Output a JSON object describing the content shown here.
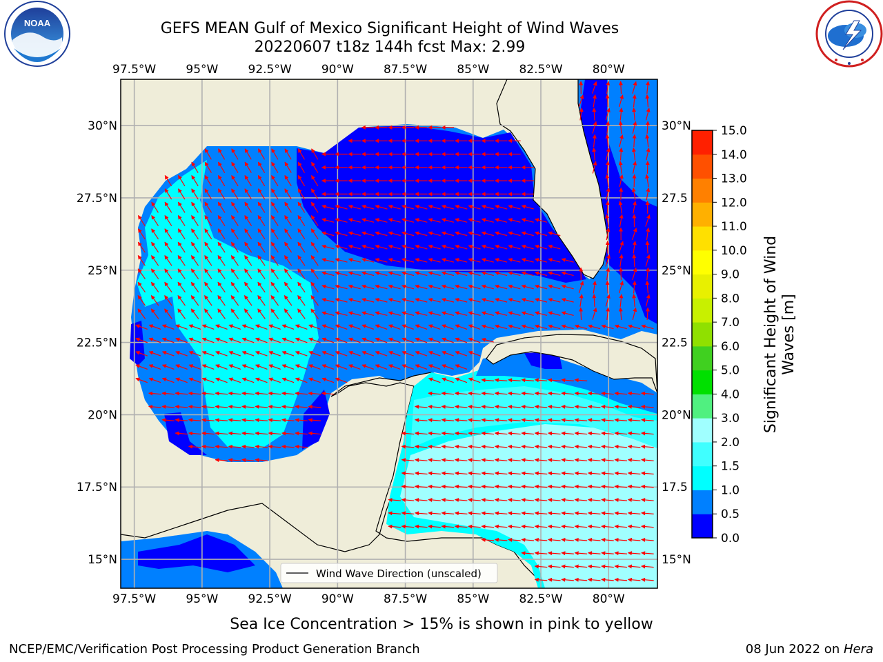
{
  "title": "GEFS MEAN Gulf of Mexico Significant Height of Wind Waves",
  "subtitle": "20220607 t18z 144h fcst   Max: 2.99",
  "caption": "Sea Ice Concentration > 15% is shown in pink to yellow",
  "footer_left": "NCEP/EMC/Verification Post Processing Product Generation Branch",
  "footer_right_date": "08 Jun 2022 on ",
  "footer_right_host": "Hera",
  "logos": {
    "left": {
      "icon": "noaa-logo-icon",
      "text": "NOAA"
    },
    "right": {
      "icon": "nws-logo-icon"
    }
  },
  "map": {
    "lon_range": [
      -98,
      -78.2
    ],
    "lat_range": [
      14.0,
      31.6
    ],
    "lon_ticks": [
      -97.5,
      -95,
      -92.5,
      -90,
      -87.5,
      -85,
      -82.5,
      -80
    ],
    "lon_labels": [
      "97.5°W",
      "95°W",
      "92.5°W",
      "90°W",
      "87.5°W",
      "85°W",
      "82.5°W",
      "80°W"
    ],
    "lat_ticks": [
      15,
      17.5,
      20,
      22.5,
      25,
      27.5,
      30
    ],
    "lat_labels": [
      "15°N",
      "17.5°N",
      "20°N",
      "22.5°N",
      "25°N",
      "27.5°N",
      "30°N"
    ],
    "right_lat_labels": [
      "15°N",
      "17.5",
      "20°N",
      "22.5",
      "25°N",
      "27.5",
      "30°N"
    ],
    "gridlines": true,
    "land_color": "#efedd9",
    "legend_label": "Wind Wave Direction (unscaled)",
    "legend_position": "bottom-center"
  },
  "colorbar": {
    "label": "Significant Height of Wind Waves [m]",
    "label_lines": [
      "Significant Height of Wind",
      "Waves [m]"
    ],
    "ticks": [
      "0.0",
      "0.5",
      "1.0",
      "1.5",
      "2.0",
      "3.0",
      "4.0",
      "5.0",
      "6.0",
      "7.0",
      "8.0",
      "9.0",
      "10.0",
      "11.0",
      "12.0",
      "13.0",
      "14.0",
      "15.0"
    ],
    "colors": [
      "#0000ff",
      "#0080ff",
      "#00ffff",
      "#40ffff",
      "#a0ffff",
      "#50f080",
      "#00e000",
      "#40d020",
      "#90e000",
      "#c8f000",
      "#e8f000",
      "#ffff00",
      "#ffe000",
      "#ffb000",
      "#ff8000",
      "#ff5000",
      "#ff2000",
      "#ff0000"
    ]
  }
}
